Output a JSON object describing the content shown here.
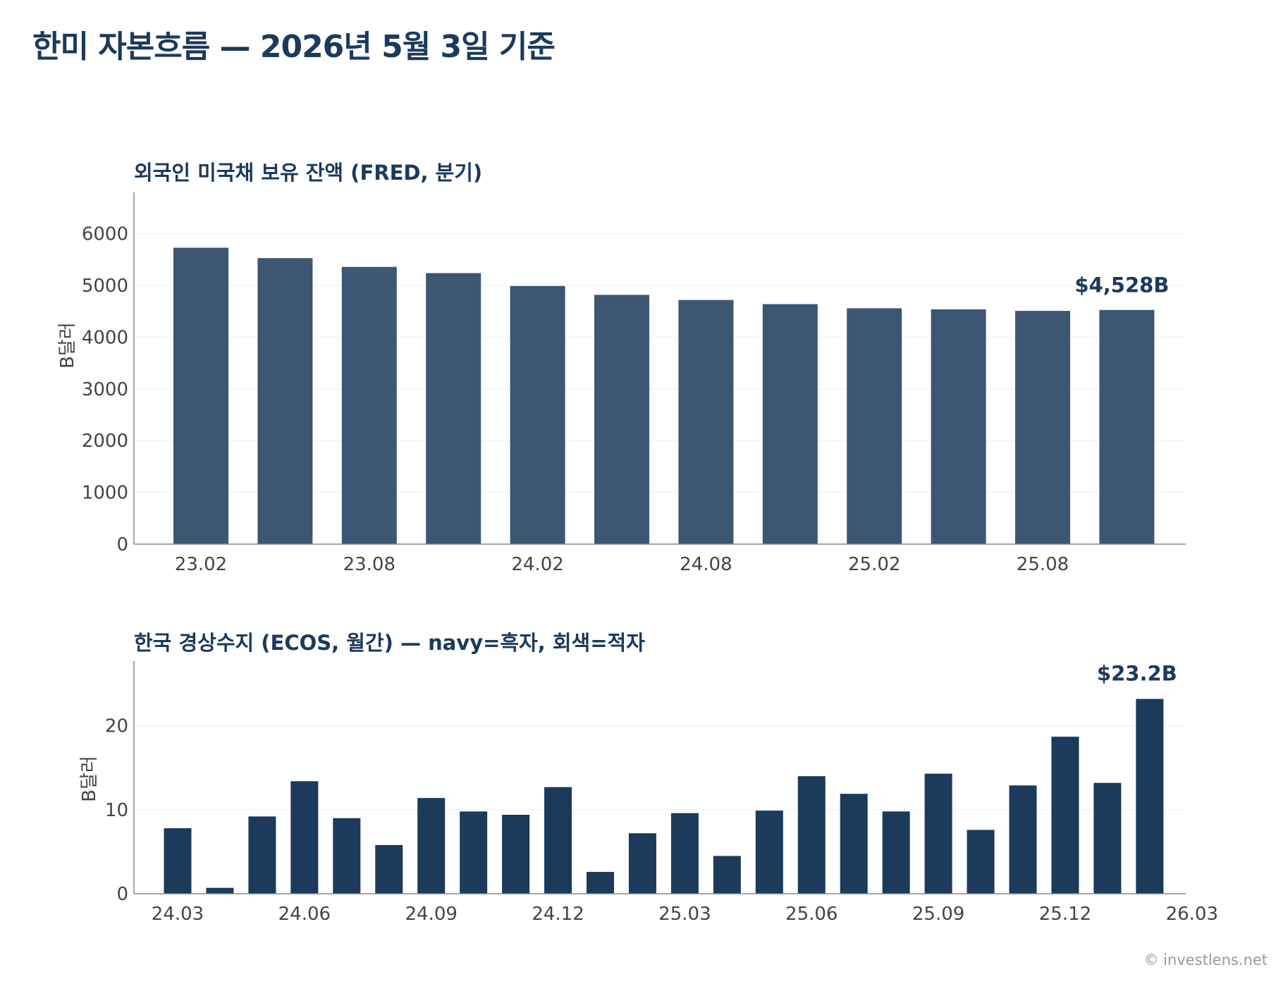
{
  "page": {
    "title": "한미 자본흐름 — 2026년 5월 3일 기준",
    "footer": "© investlens.net"
  },
  "colors": {
    "title": "#1b3a5c",
    "bar_panel1": "#3d5673",
    "bar_positive": "#1b3a5c",
    "bar_negative": "#9a9a9a",
    "axis": "#888888",
    "grid": "#eeeeee",
    "tick_text": "#444444"
  },
  "chart_data": [
    {
      "type": "bar",
      "title": "외국인 미국채 보유 잔액 (FRED, 분기)",
      "ylabel": "B달러",
      "xlabel": "",
      "ylim": [
        0,
        6800
      ],
      "yticks": [
        0,
        1000,
        2000,
        3000,
        4000,
        5000,
        6000
      ],
      "categories": [
        "23.02",
        "23.05",
        "23.08",
        "23.11",
        "24.02",
        "24.05",
        "24.08",
        "24.11",
        "25.02",
        "25.05",
        "25.08",
        "25.11"
      ],
      "values": [
        5730,
        5530,
        5360,
        5240,
        4990,
        4820,
        4720,
        4640,
        4560,
        4540,
        4510,
        4528
      ],
      "xtick_labels": [
        "23.02",
        "23.08",
        "24.02",
        "24.08",
        "25.02",
        "25.08"
      ],
      "last_label": "$4,528B",
      "grid": true
    },
    {
      "type": "bar",
      "title": "한국 경상수지 (ECOS, 월간) — navy=흑자, 회색=적자",
      "ylabel": "B달러",
      "xlabel": "",
      "ylim": [
        0,
        27.7
      ],
      "yticks": [
        0,
        10,
        20
      ],
      "categories": [
        "24.03",
        "24.04",
        "24.05",
        "24.06",
        "24.07",
        "24.08",
        "24.09",
        "24.10",
        "24.11",
        "24.12",
        "25.01",
        "25.02",
        "25.03",
        "25.04",
        "25.05",
        "25.06",
        "25.07",
        "25.08",
        "25.09",
        "25.10",
        "25.11",
        "25.12",
        "26.01",
        "26.02"
      ],
      "values": [
        7.8,
        0.7,
        9.2,
        13.4,
        9.0,
        5.8,
        11.4,
        9.8,
        9.4,
        12.7,
        2.6,
        7.2,
        9.6,
        4.5,
        9.9,
        14.0,
        11.9,
        9.8,
        14.3,
        7.6,
        12.9,
        18.7,
        13.2,
        23.2
      ],
      "xtick_labels": [
        "24.03",
        "24.06",
        "24.09",
        "24.12",
        "25.03",
        "25.06",
        "25.09",
        "25.12",
        "26.03"
      ],
      "last_label": "$23.2B",
      "grid": true
    }
  ]
}
